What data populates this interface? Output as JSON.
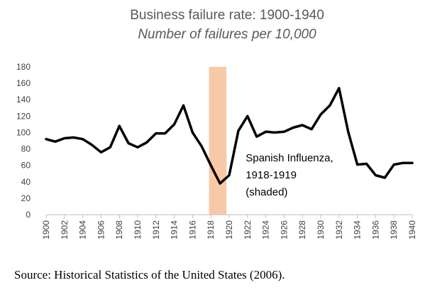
{
  "chart_data": {
    "type": "line",
    "title": "Business failure rate: 1900-1940",
    "subtitle": "Number of failures per 10,000",
    "ylim": [
      0,
      180
    ],
    "yticks": [
      0,
      20,
      40,
      60,
      80,
      100,
      120,
      140,
      160,
      180
    ],
    "xlim": [
      1900,
      1940
    ],
    "xticks": [
      1900,
      1902,
      1904,
      1906,
      1908,
      1910,
      1912,
      1914,
      1916,
      1918,
      1920,
      1922,
      1924,
      1926,
      1928,
      1930,
      1932,
      1934,
      1936,
      1938,
      1940
    ],
    "grid": false,
    "legend": "none",
    "line_color": "#000000",
    "shade_color": "#f8c9a6",
    "shaded_period": [
      1917.8,
      1919.7
    ],
    "annotation": {
      "lines": [
        "Spanish Influenza,",
        "1918-1919",
        "(shaded)"
      ],
      "x": 1921.8,
      "y": 65
    },
    "series": [
      {
        "x": [
          1900,
          1901,
          1902,
          1903,
          1904,
          1905,
          1906,
          1907,
          1908,
          1909,
          1910,
          1911,
          1912,
          1913,
          1914,
          1915,
          1916,
          1917,
          1918,
          1919,
          1920,
          1921,
          1922,
          1923,
          1924,
          1925,
          1926,
          1927,
          1928,
          1929,
          1930,
          1931,
          1932,
          1933,
          1934,
          1935,
          1936,
          1937,
          1938,
          1939,
          1940
        ],
        "values": [
          92,
          89,
          93,
          94,
          92,
          85,
          76,
          82,
          108,
          87,
          82,
          88,
          99,
          99,
          110,
          133,
          100,
          83,
          60,
          38,
          48,
          102,
          120,
          95,
          101,
          100,
          101,
          106,
          109,
          104,
          122,
          133,
          154,
          101,
          61,
          62,
          48,
          45,
          61,
          63,
          63
        ]
      }
    ]
  },
  "source": "Source: Historical Statistics of the United States (2006)."
}
